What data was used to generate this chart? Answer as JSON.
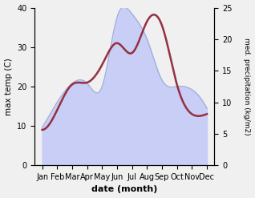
{
  "months": [
    "Jan",
    "Feb",
    "Mar",
    "Apr",
    "May",
    "Jun",
    "Jul",
    "Aug",
    "Sep",
    "Oct",
    "Nov",
    "Dec"
  ],
  "max_temp": [
    9.0,
    14.0,
    20.5,
    21.0,
    25.5,
    31.0,
    28.5,
    36.5,
    35.5,
    20.5,
    13.0,
    13.0
  ],
  "precipitation": [
    6.0,
    10.0,
    13.0,
    13.0,
    12.5,
    23.5,
    24.0,
    20.0,
    13.5,
    12.5,
    12.0,
    9.0
  ],
  "temp_color": "#943040",
  "precip_fill_color": "#c8cef5",
  "precip_line_color": "#a0aad8",
  "xlabel": "date (month)",
  "ylabel_left": "max temp (C)",
  "ylabel_right": "med. precipitation (kg/m2)",
  "ylim_left": [
    0,
    40
  ],
  "ylim_right": [
    0,
    25
  ],
  "yticks_left": [
    0,
    10,
    20,
    30,
    40
  ],
  "yticks_right": [
    0,
    5,
    10,
    15,
    20,
    25
  ]
}
